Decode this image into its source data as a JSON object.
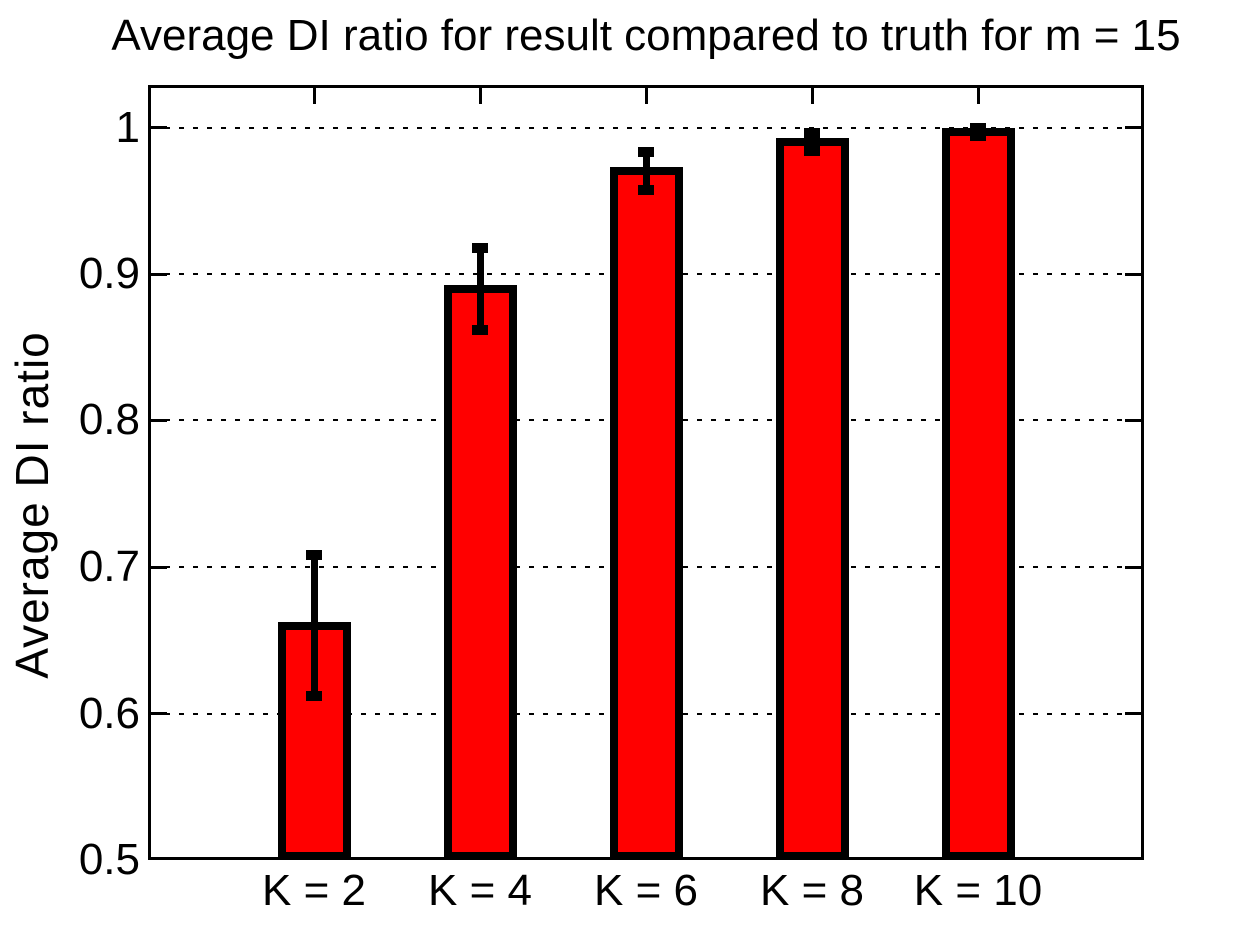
{
  "chart_data": {
    "type": "bar",
    "title": "Average DI ratio for result compared to truth for m = 15",
    "ylabel": "Average DI ratio",
    "xlabel": "",
    "categories": [
      "K = 2",
      "K = 4",
      "K = 6",
      "K = 8",
      "K = 10"
    ],
    "values": [
      0.66,
      0.89,
      0.97,
      0.99,
      0.997
    ],
    "error_bars": [
      0.048,
      0.028,
      0.013,
      0.006,
      0.003
    ],
    "ylim": [
      0.5,
      1.0
    ],
    "yticks": [
      0.5,
      0.6,
      0.7,
      0.8,
      0.9,
      1.0
    ],
    "ytick_labels": [
      "0.5",
      "0.6",
      "0.7",
      "0.8",
      "0.9",
      "1"
    ],
    "grid": "horizontal-dotted",
    "legend_position": "none",
    "bar_color": "#ff0000",
    "bar_edge_color": "#000000",
    "errorbar_color": "#000000",
    "axis_color": "#000000",
    "background_color": "#ffffff"
  }
}
